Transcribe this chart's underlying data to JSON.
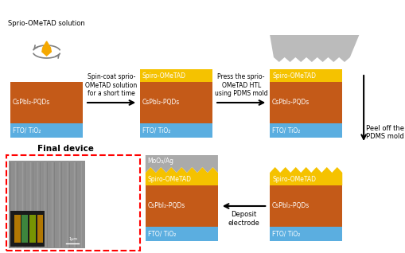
{
  "background_color": "#ffffff",
  "colors": {
    "spiro": "#F5C200",
    "cspbi": "#C45A18",
    "fto": "#5BAEE0",
    "moo3ag": "#AAAAAA",
    "pdms": "#BBBBBB"
  },
  "layer_labels": {
    "spiro": "Spiro-OMeTAD",
    "cspbi": "CsPbI₂-PQDs",
    "fto": "FTO/ TiO₂",
    "moo3": "MoO₃/Ag"
  },
  "step_texts": [
    "Sprio-OMeTAD solution",
    "Spin-coat sprio-\nOMeTAD solution\nfor a short time",
    "Press the sprio-\nOMeTAD HTL\nusing PDMS mold",
    "Peel off the\nPDMS mold",
    "Deposit\nelectrode",
    "Final device"
  ],
  "pdms_label": "PDMS mold"
}
